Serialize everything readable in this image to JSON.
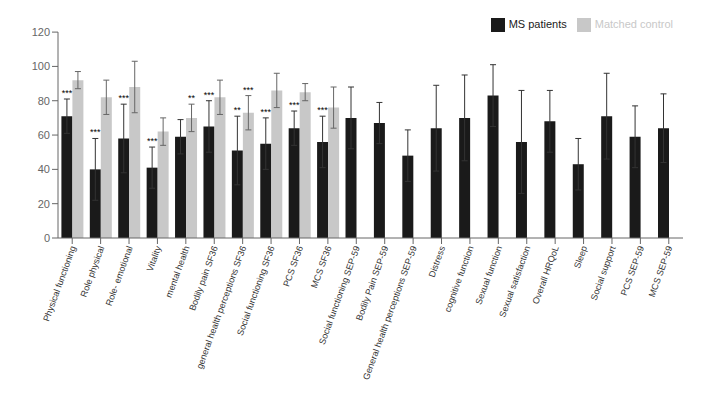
{
  "chart_data": {
    "type": "bar",
    "categories": [
      "Physical functioning",
      "Role physical",
      "Role- emotional",
      "Vitality",
      "mental health",
      "Bodily pain SF36",
      "general health perceptions SF36",
      "Social functioning SF36",
      "PCS SF36",
      "MCS SF36",
      "Social functioning SEP-59",
      "Bodily Pain  SEP-59",
      "General health perceptions SEP-59",
      "Distress",
      "cognitive function",
      "Sexual function",
      "Sexual satisfaction",
      "Overall HRQoL",
      "Sleep",
      "Social support",
      "PCS SEP-59",
      "MCS SEP-59"
    ],
    "series": [
      {
        "name": "MS patients",
        "color": "#1a1a1a",
        "values": [
          71,
          40,
          58,
          41,
          59,
          65,
          51,
          55,
          64,
          56,
          70,
          67,
          48,
          64,
          70,
          83,
          56,
          68,
          43,
          71,
          59,
          64
        ],
        "errors": [
          10,
          18,
          20,
          12,
          10,
          15,
          20,
          15,
          10,
          15,
          18,
          12,
          15,
          25,
          25,
          18,
          30,
          18,
          15,
          25,
          18,
          20
        ],
        "significance": [
          "***",
          "***",
          "***",
          "***",
          null,
          "***",
          "**",
          "***",
          "***",
          "***",
          null,
          null,
          null,
          null,
          null,
          null,
          null,
          null,
          null,
          null,
          null,
          null
        ]
      },
      {
        "name": "Matched control",
        "color": "#c8c8c8",
        "values": [
          92,
          82,
          88,
          62,
          70,
          82,
          73,
          86,
          85,
          76,
          null,
          null,
          null,
          null,
          null,
          null,
          null,
          null,
          null,
          null,
          null,
          null
        ],
        "errors": [
          5,
          10,
          15,
          8,
          8,
          10,
          10,
          10,
          5,
          12,
          null,
          null,
          null,
          null,
          null,
          null,
          null,
          null,
          null,
          null,
          null,
          null
        ],
        "significance": [
          null,
          null,
          null,
          null,
          "**",
          null,
          "***",
          null,
          null,
          null,
          null,
          null,
          null,
          null,
          null,
          null,
          null,
          null,
          null,
          null,
          null,
          null
        ]
      }
    ],
    "ylim": [
      0,
      120
    ],
    "yticks": [
      0,
      20,
      40,
      60,
      80,
      100,
      120
    ],
    "grid": false,
    "legend": "upper right"
  }
}
